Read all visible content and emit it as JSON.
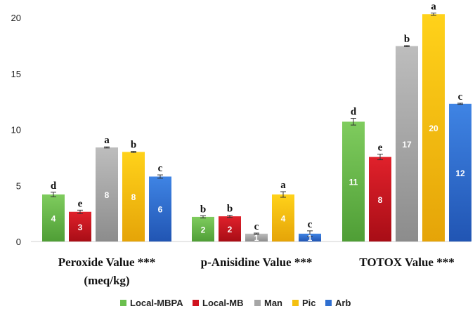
{
  "chart_data": {
    "type": "bar",
    "categories": [
      "Peroxide Value ***",
      "p-Anisidine Value ***",
      "TOTOX Value ***"
    ],
    "category_sublabels": [
      "(meq/kg)",
      "",
      ""
    ],
    "ylim": [
      0,
      21
    ],
    "yticks": [
      0,
      5,
      10,
      15,
      20
    ],
    "legend_position": "bottom",
    "grid": false,
    "series": [
      {
        "name": "Local-MBPA",
        "color": "#6bbf4e",
        "values": [
          4.2,
          2.2,
          10.7
        ],
        "errors": [
          0.2,
          0.1,
          0.3
        ],
        "value_labels": [
          "4",
          "2",
          "11"
        ],
        "letters": [
          "d",
          "b",
          "d"
        ]
      },
      {
        "name": "Local-MB",
        "color": "#d0131e",
        "values": [
          2.65,
          2.25,
          7.55
        ],
        "errors": [
          0.15,
          0.1,
          0.25
        ],
        "value_labels": [
          "3",
          "2",
          "8"
        ],
        "letters": [
          "e",
          "b",
          "e"
        ]
      },
      {
        "name": "Man",
        "color": "#a6a6a6",
        "values": [
          8.4,
          0.7,
          17.45
        ],
        "errors": [
          0.05,
          0.05,
          0.05
        ],
        "value_labels": [
          "8",
          "1",
          "17"
        ],
        "letters": [
          "a",
          "c",
          "b"
        ]
      },
      {
        "name": "Pic",
        "color": "#f4c010",
        "values": [
          8.0,
          4.2,
          20.3
        ],
        "errors": [
          0.05,
          0.25,
          0.1
        ],
        "value_labels": [
          "8",
          "4",
          "20"
        ],
        "letters": [
          "b",
          "a",
          "a"
        ]
      },
      {
        "name": "Arb",
        "color": "#2f6fd0",
        "values": [
          5.8,
          0.7,
          12.3
        ],
        "errors": [
          0.15,
          0.25,
          0.05
        ],
        "value_labels": [
          "6",
          "1",
          "12"
        ],
        "letters": [
          "c",
          "c",
          "c"
        ]
      }
    ]
  }
}
